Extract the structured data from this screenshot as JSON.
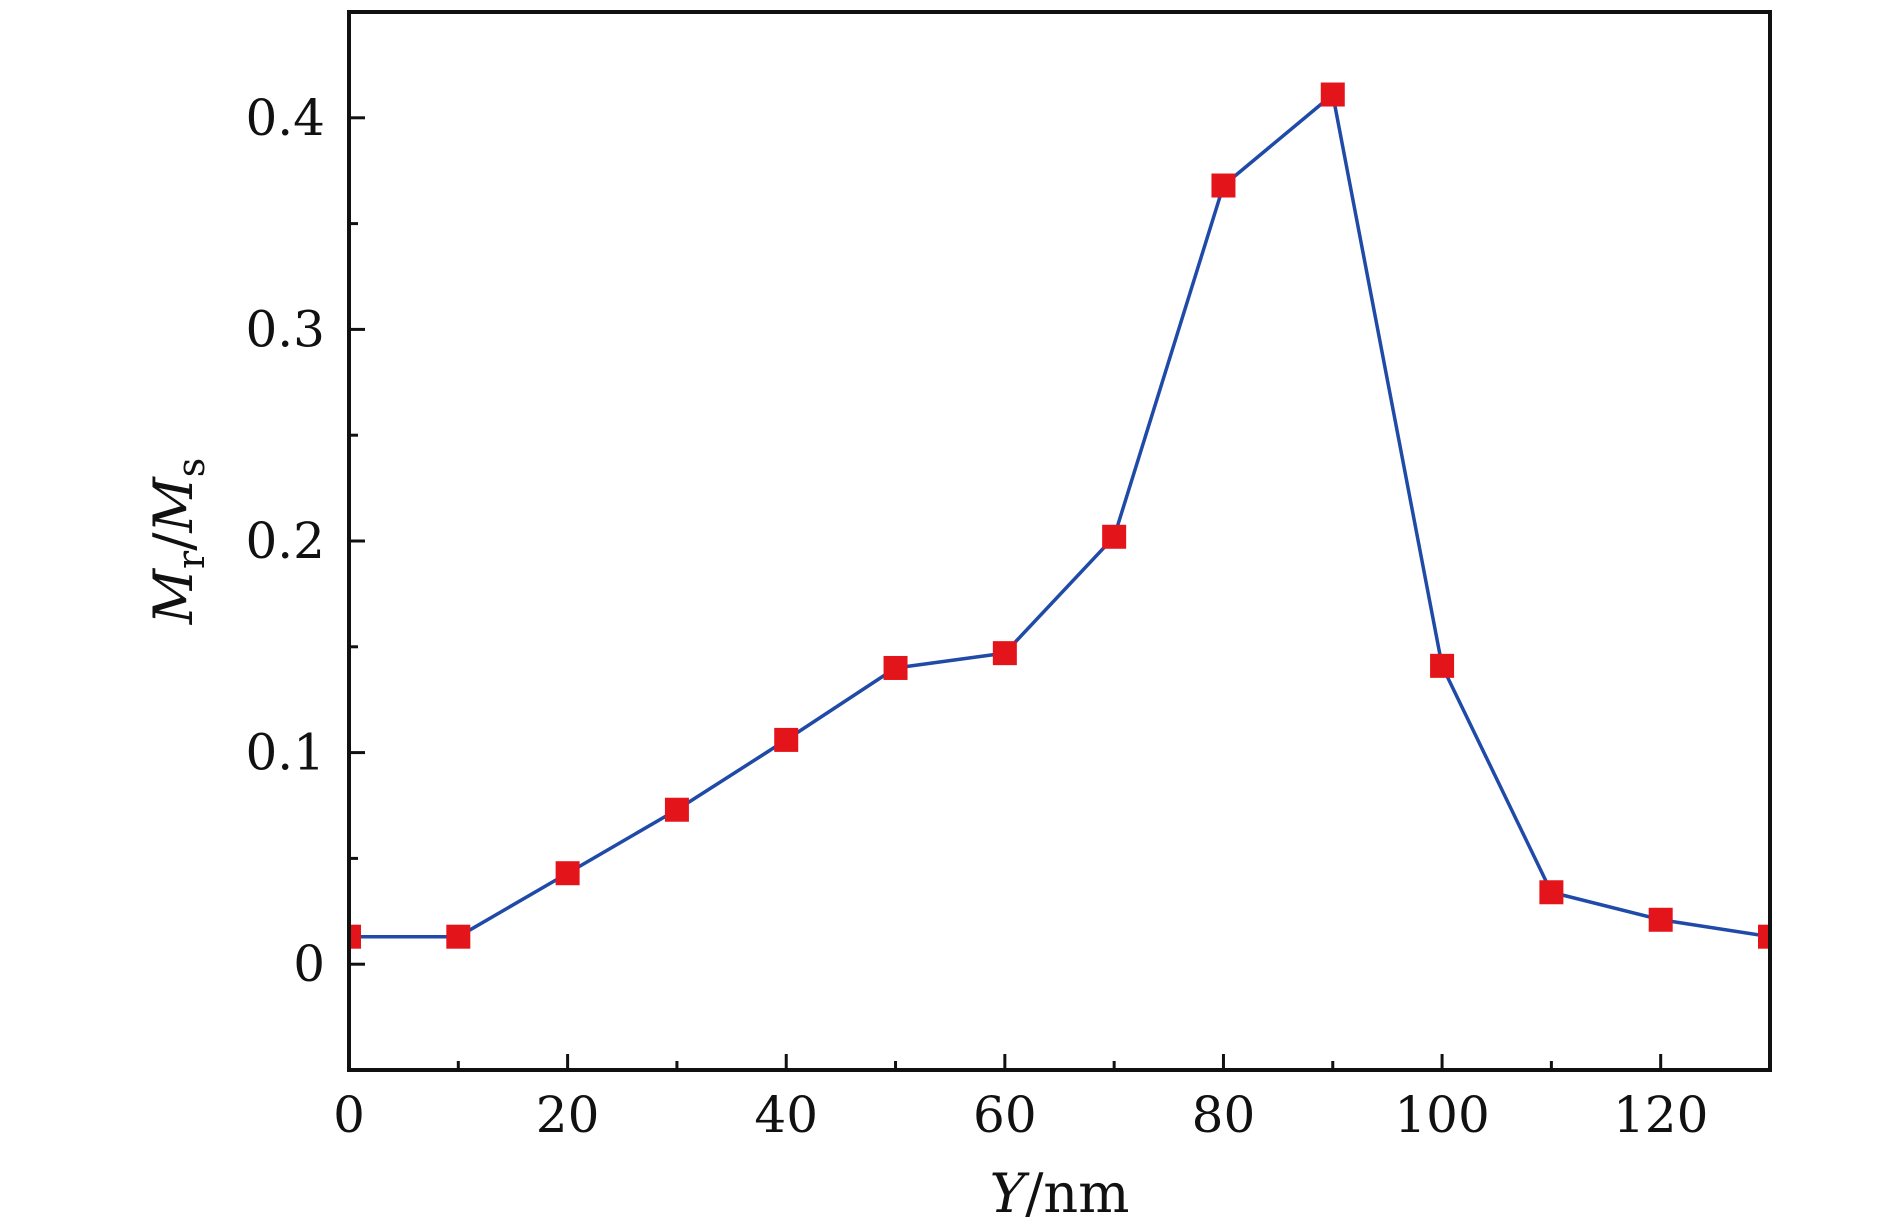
{
  "chart_data": {
    "type": "line",
    "xlabel": {
      "var": "Y",
      "unit": "/nm"
    },
    "ylabel": {
      "main": "M",
      "sub1": "r",
      "sep": "/",
      "main2": "M",
      "sub2": "s"
    },
    "xlim": [
      0,
      130
    ],
    "ylim": [
      -0.05,
      0.45
    ],
    "x_ticks": [
      0,
      20,
      40,
      60,
      80,
      100,
      120
    ],
    "x_tick_labels": [
      "0",
      "20",
      "40",
      "60",
      "80",
      "100",
      "120"
    ],
    "x_minor_ticks": [
      10,
      30,
      50,
      70,
      90,
      110
    ],
    "y_ticks": [
      0,
      0.1,
      0.2,
      0.3,
      0.4
    ],
    "y_tick_labels": [
      "0",
      "0.1",
      "0.2",
      "0.3",
      "0.4"
    ],
    "y_minor_ticks": [
      0.05,
      0.15,
      0.25,
      0.35
    ],
    "grid": false,
    "series": [
      {
        "x": [
          0,
          10,
          20,
          30,
          40,
          50,
          60,
          70,
          80,
          90,
          100,
          110,
          120,
          130
        ],
        "y": [
          0.013,
          0.013,
          0.043,
          0.073,
          0.106,
          0.14,
          0.147,
          0.202,
          0.368,
          0.411,
          0.141,
          0.034,
          0.021,
          0.013
        ],
        "line_color": "#1f4aa8",
        "marker_color": "#e4141b",
        "marker": "square"
      }
    ]
  }
}
